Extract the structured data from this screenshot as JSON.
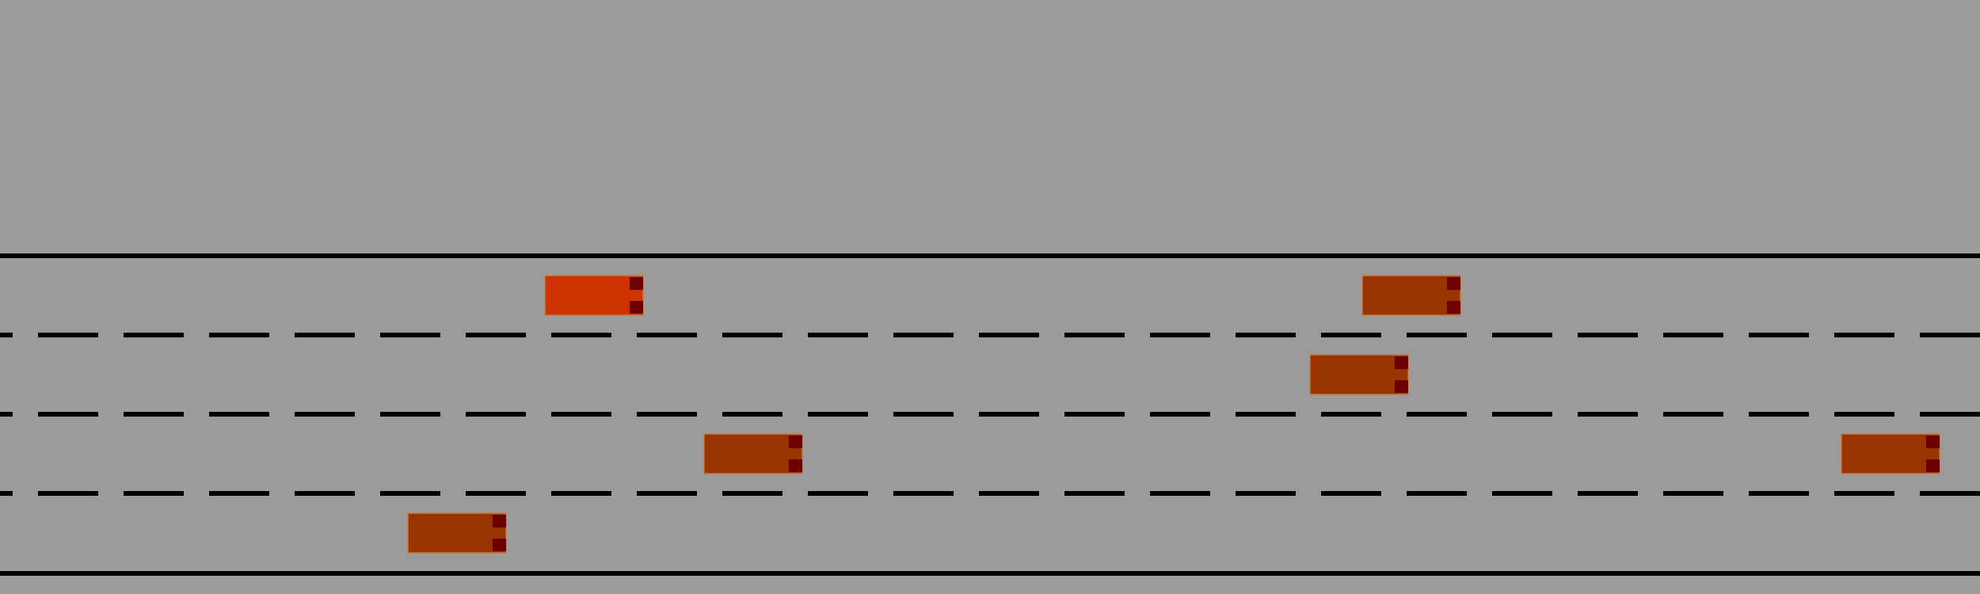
{
  "scene": {
    "type": "highway-driving-simulation",
    "lane_count": 4,
    "colors": {
      "background": "#9b9b9b",
      "road_edge": "#000000",
      "lane_marking": "#000000",
      "ego_vehicle": "#cc3300",
      "other_vehicle": "#993300",
      "vehicle_outline": "#c97a3e",
      "headlight": "#6b0000"
    },
    "vehicles": [
      {
        "id": "ego",
        "lane": 0,
        "role": "controlled",
        "heading": "right"
      },
      {
        "id": "car-1",
        "lane": 0,
        "role": "traffic",
        "heading": "right"
      },
      {
        "id": "car-2",
        "lane": 1,
        "role": "traffic",
        "heading": "right"
      },
      {
        "id": "car-3",
        "lane": 2,
        "role": "traffic",
        "heading": "right"
      },
      {
        "id": "car-4",
        "lane": 2,
        "role": "traffic",
        "heading": "right"
      },
      {
        "id": "car-5",
        "lane": 3,
        "role": "traffic",
        "heading": "right"
      }
    ]
  }
}
